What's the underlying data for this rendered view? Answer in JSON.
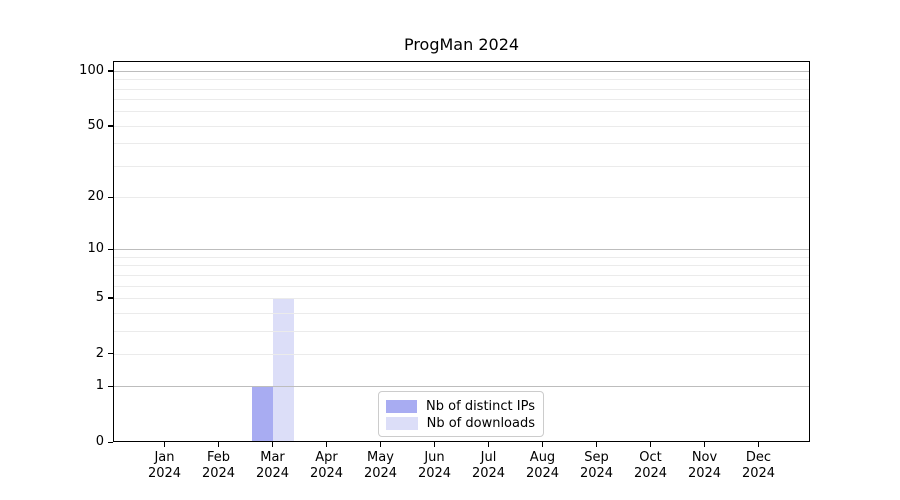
{
  "title": "ProgMan 2024",
  "background_color": "#ffffff",
  "chart_data": {
    "type": "bar",
    "title": "ProgMan 2024",
    "categories": [
      "Jan",
      "Feb",
      "Mar",
      "Apr",
      "May",
      "Jun",
      "Jul",
      "Aug",
      "Sep",
      "Oct",
      "Nov",
      "Dec"
    ],
    "year_label": "2024",
    "series": [
      {
        "name": "Nb of distinct IPs",
        "color": "#a8acf2",
        "values": [
          0,
          0,
          1,
          0,
          0,
          0,
          0,
          0,
          0,
          0,
          0,
          0
        ]
      },
      {
        "name": "Nb of downloads",
        "color": "#dcdef8",
        "values": [
          0,
          0,
          5,
          0,
          0,
          0,
          0,
          0,
          0,
          0,
          0,
          0
        ]
      }
    ],
    "yscale": "log1p",
    "ylim": [
      0,
      113
    ],
    "ytick_labels": [
      100,
      50,
      20,
      10,
      5,
      2,
      1,
      0
    ],
    "grid_major": [
      1,
      10,
      100
    ],
    "grid_minor": [
      2,
      3,
      4,
      5,
      6,
      7,
      8,
      9,
      20,
      30,
      40,
      50,
      60,
      70,
      80,
      90
    ],
    "grid_major_color": "#bdbdbd",
    "grid_minor_color": "#ebebeb",
    "axis_color": "#000000",
    "legend_position": "lower center",
    "xlabel": "",
    "ylabel": ""
  }
}
